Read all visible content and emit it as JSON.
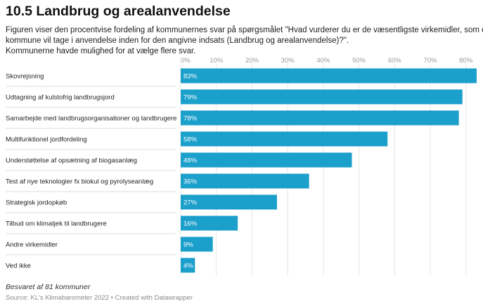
{
  "title": "10.5 Landbrug og arealanvendelse",
  "subtitle_lines": [
    "Figuren viser den procentvise fordeling af kommunernes svar på spørgsmålet \"Hvad vurderer du er de væsentligste virkemidler, som din",
    "kommune vil tage i anvendelse inden for den angivne indsats (Landbrug og arealanvendelse)?\".",
    "Kommunerne havde mulighed for at vælge flere svar."
  ],
  "note": "Besvaret af 81 kommuner",
  "source": "Source: KL's Klimabarometer 2022 • Created with Datawrapper",
  "colors": {
    "bar": "#1b9fcb",
    "grid": "#e6e6e6",
    "separator": "#d2d2d2"
  },
  "chart_data": {
    "type": "bar",
    "orientation": "horizontal",
    "title": "10.5 Landbrug og arealanvendelse",
    "xlabel": "",
    "ylabel": "",
    "xlim": [
      0,
      83
    ],
    "ticks": [
      "0%",
      "10%",
      "20%",
      "30%",
      "40%",
      "50%",
      "60%",
      "70%",
      "80%"
    ],
    "tick_values": [
      0,
      10,
      20,
      30,
      40,
      50,
      60,
      70,
      80
    ],
    "grid": true,
    "legend": "none",
    "categories": [
      "Skovrejsning",
      "Udtagning af kulstofrig landbrugsjord",
      "Samarbejde med landbrugsorganisationer og landbrugere",
      "Multifunktionel jordfordeling",
      "Understøttelse af opsætning af biogasanlæg",
      "Test af nye teknologier fx biokul og pyrolyseanlæg",
      "Strategisk jordopkøb",
      "Tilbud om klimatjek til landbrugere",
      "Andre virkemidler",
      "Ved ikke"
    ],
    "values": [
      83,
      79,
      78,
      58,
      48,
      36,
      27,
      16,
      9,
      4
    ],
    "value_labels": [
      "83%",
      "79%",
      "78%",
      "58%",
      "48%",
      "36%",
      "27%",
      "16%",
      "9%",
      "4%"
    ]
  }
}
